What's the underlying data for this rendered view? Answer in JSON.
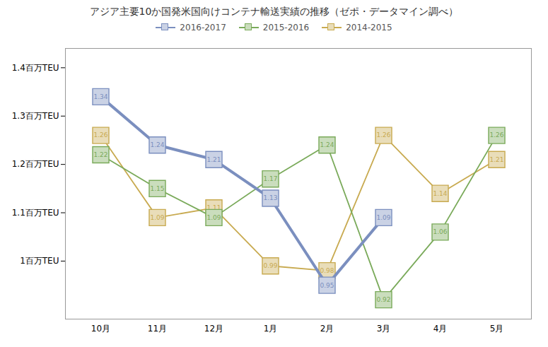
{
  "chart_data": {
    "type": "line",
    "title": "アジア主要10か国発米国向けコンテナ輸送実績の推移（ゼポ・データマイン調べ）",
    "categories": [
      "10月",
      "11月",
      "12月",
      "1月",
      "2月",
      "3月",
      "4月",
      "5月"
    ],
    "series": [
      {
        "name": "2016-2017",
        "color": "#7b8fbf",
        "values": [
          1.34,
          1.24,
          1.21,
          1.13,
          0.95,
          1.09,
          null,
          null
        ]
      },
      {
        "name": "2015-2016",
        "color": "#7aaa5a",
        "values": [
          1.22,
          1.15,
          1.09,
          1.17,
          1.24,
          0.92,
          1.06,
          1.26
        ]
      },
      {
        "name": "2014-2015",
        "color": "#c8aa50",
        "values": [
          1.26,
          1.09,
          1.11,
          0.99,
          0.98,
          1.26,
          1.14,
          1.21
        ]
      }
    ],
    "ylim": [
      0.88,
      1.44
    ],
    "yticks": [
      {
        "value": 1.0,
        "label": "1百万TEU"
      },
      {
        "value": 1.1,
        "label": "1.1百万TEU"
      },
      {
        "value": 1.2,
        "label": "1.2百万TEU"
      },
      {
        "value": 1.3,
        "label": "1.3百万TEU"
      },
      {
        "value": 1.4,
        "label": "1.4百万TEU"
      }
    ],
    "data_labels": true,
    "marker": "square",
    "legend": "upper center"
  }
}
